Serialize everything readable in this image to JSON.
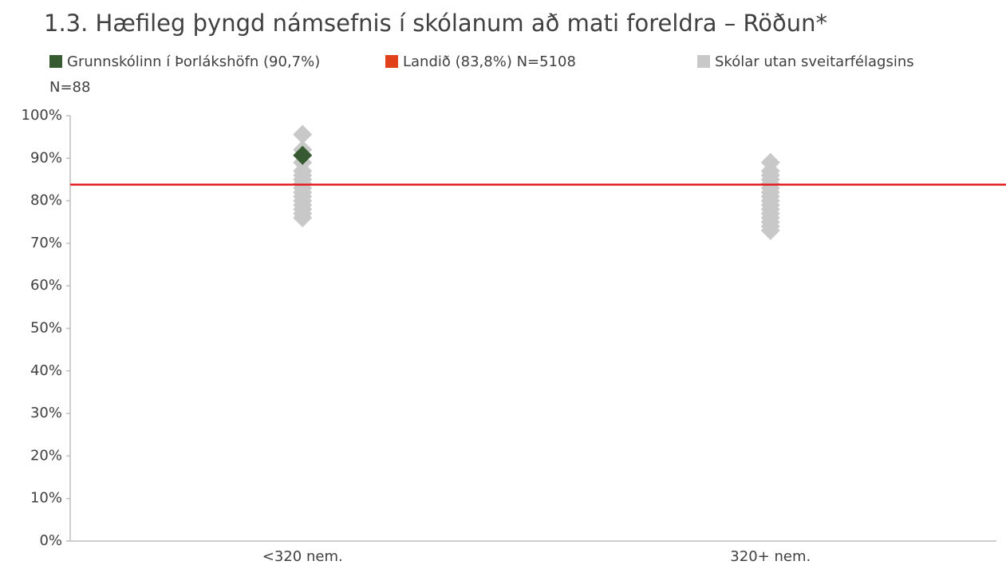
{
  "chart_data": {
    "type": "dot",
    "title": "1.3. Hæfileg þyngd námsefnis í skólanum að mati foreldra – Röðun*",
    "categories": [
      "<320 nem.",
      "320+ nem."
    ],
    "series": [
      {
        "name": "Skólar utan sveitarfélagsins",
        "color": "#c8c8c8",
        "marker": "diamond",
        "values": [
          [
            95.6,
            92,
            89,
            87,
            86,
            85,
            84,
            83,
            82,
            81,
            80,
            79,
            78,
            77,
            76
          ],
          [
            89,
            87,
            86,
            85,
            84,
            83,
            82,
            81,
            80,
            79,
            78,
            77,
            76,
            75,
            74,
            73
          ]
        ]
      },
      {
        "name": "Grunnskólinn í Þorlákshöfn (90,7%) N=88",
        "color": "#375a32",
        "marker": "diamond",
        "values": [
          [
            90.7
          ],
          []
        ]
      },
      {
        "name": "Landið (83,8%) N=5108",
        "color": "#e02020",
        "legend_color": "#e0401a",
        "marker": "line",
        "value": 83.8
      }
    ],
    "legend_order": [
      1,
      2,
      0
    ],
    "ylim": [
      0,
      100
    ],
    "yticks": [
      {
        "value": 0,
        "label": "0%"
      },
      {
        "value": 10,
        "label": "10%"
      },
      {
        "value": 20,
        "label": "20%"
      },
      {
        "value": 30,
        "label": "30%"
      },
      {
        "value": 40,
        "label": "40%"
      },
      {
        "value": 50,
        "label": "50%"
      },
      {
        "value": 60,
        "label": "60%"
      },
      {
        "value": 70,
        "label": "70%"
      },
      {
        "value": 80,
        "label": "80%"
      },
      {
        "value": 90,
        "label": "90%"
      },
      {
        "value": 100,
        "label": "100%"
      }
    ]
  }
}
